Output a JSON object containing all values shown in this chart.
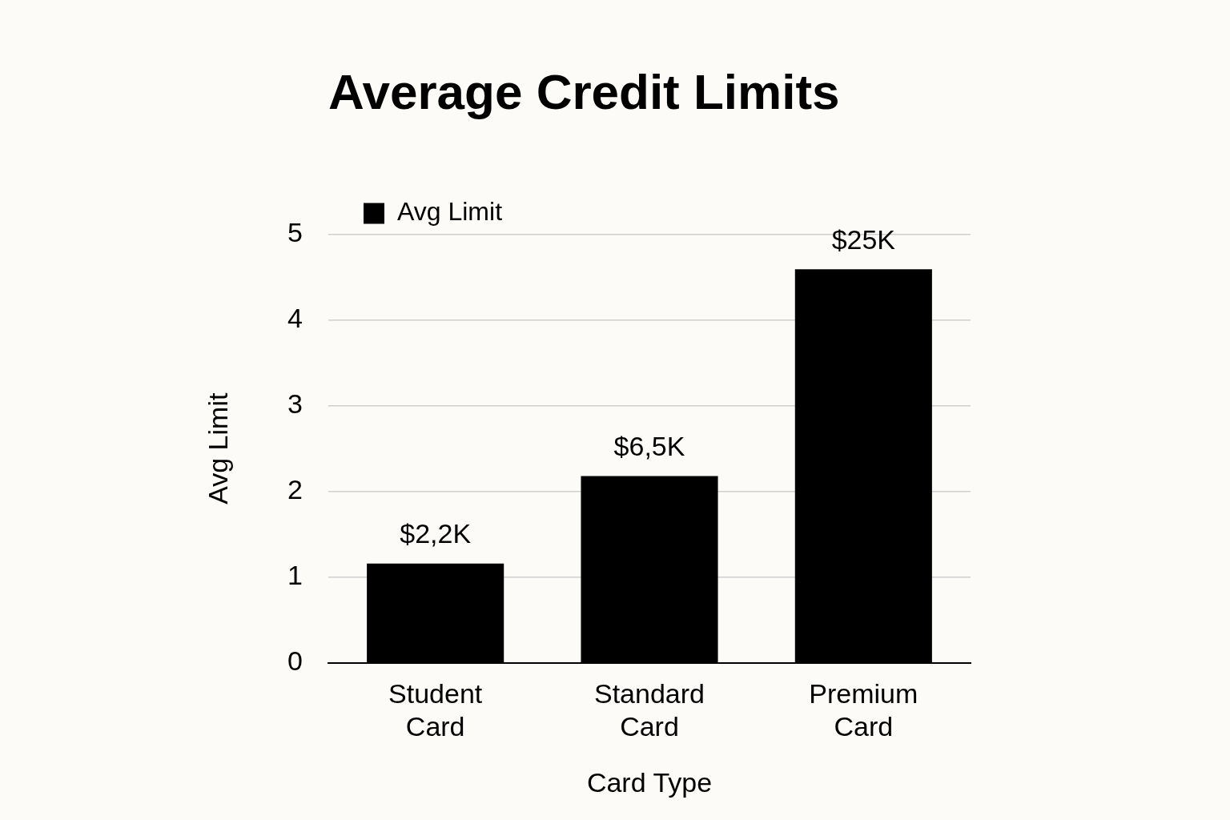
{
  "chart_data": {
    "type": "bar",
    "title": "Average Credit Limits",
    "xlabel": "Card Type",
    "ylabel": "Avg Limit",
    "categories": [
      "Student Card",
      "Standard Card",
      "Premium Card"
    ],
    "series": [
      {
        "name": "Avg Limit",
        "color": "#000000",
        "values": [
          1.16,
          2.18,
          4.59
        ]
      }
    ],
    "annotations": [
      {
        "text": "$2,2K",
        "x": "Student Card",
        "y": 1.16
      },
      {
        "text": "$6,5K",
        "x": "Standard Card",
        "y": 2.18
      },
      {
        "text": "$25K",
        "x": "Premium Card",
        "y": 4.59
      }
    ],
    "ylim": [
      0,
      5
    ],
    "yticks": [
      0,
      1,
      2,
      3,
      4,
      5
    ],
    "grid": "y",
    "legend": "top left"
  }
}
